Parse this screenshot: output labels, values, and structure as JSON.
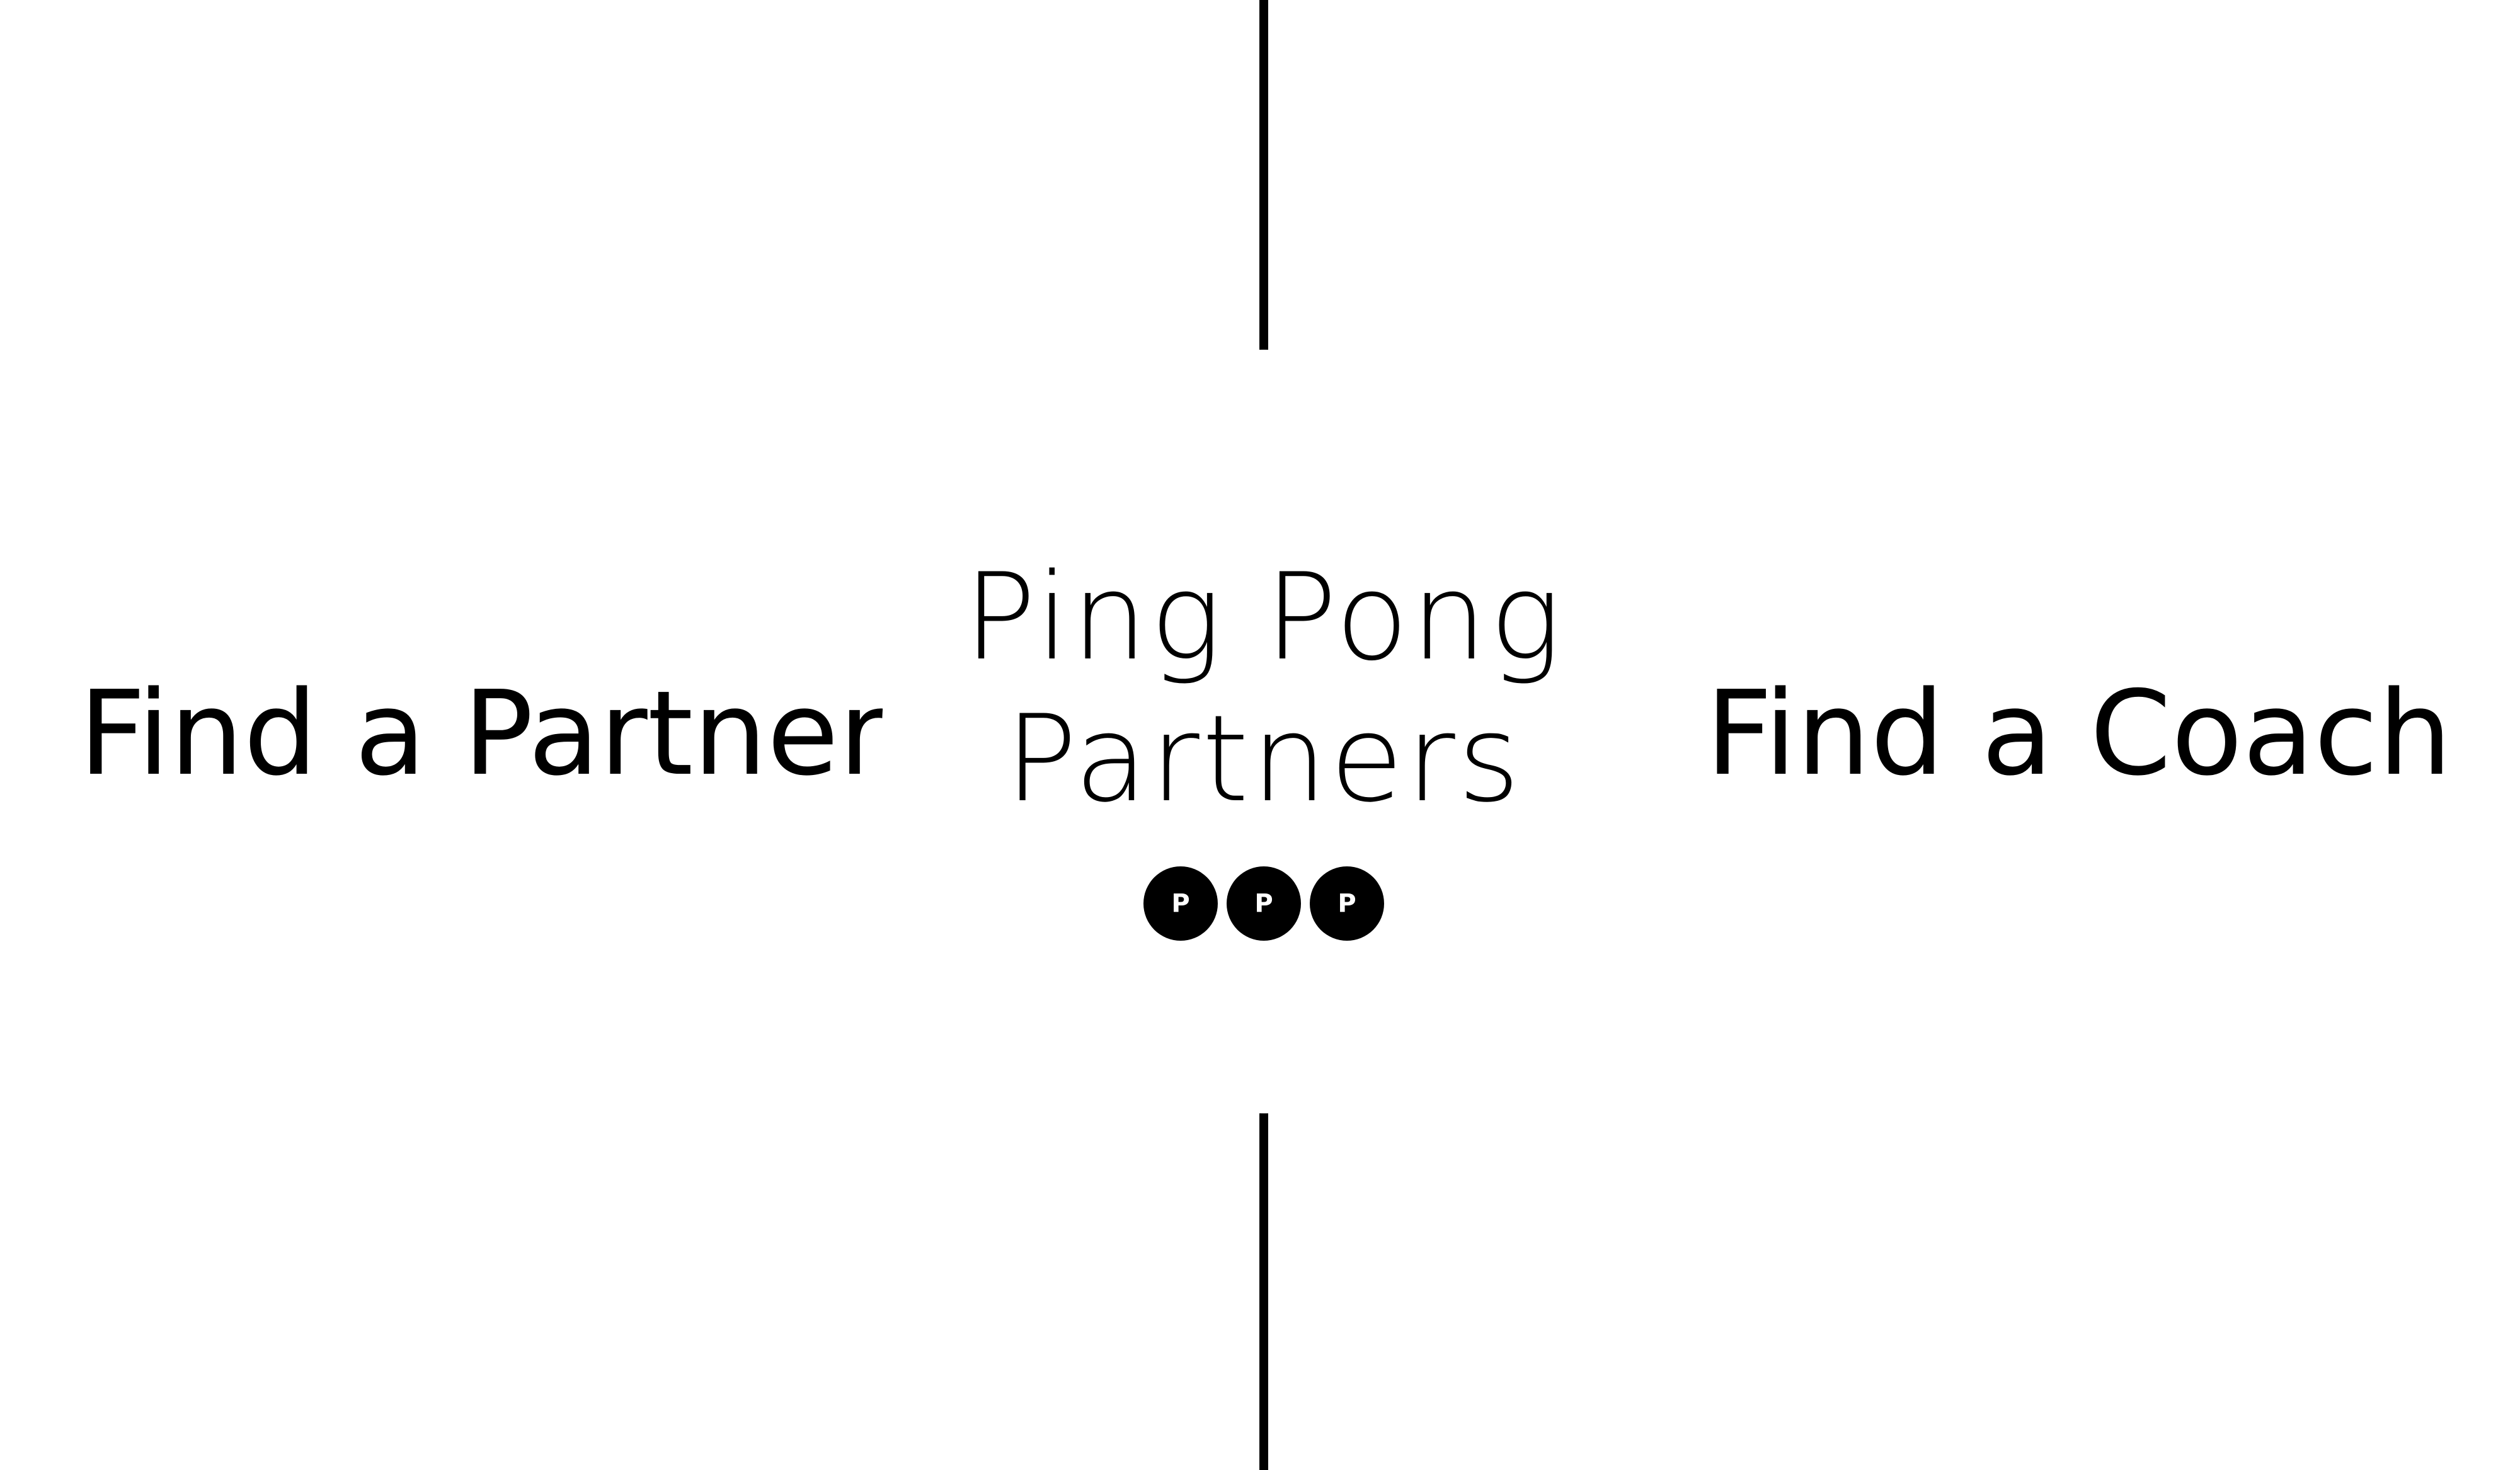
{
  "nav": {
    "left_label": "Find a Partner",
    "right_label": "Find a Coach"
  },
  "logo": {
    "line1": "Ping Pong",
    "line2": "Partners",
    "balls": [
      "P",
      "P",
      "P"
    ]
  },
  "colors": {
    "background": "#ffffff",
    "foreground": "#000000"
  }
}
